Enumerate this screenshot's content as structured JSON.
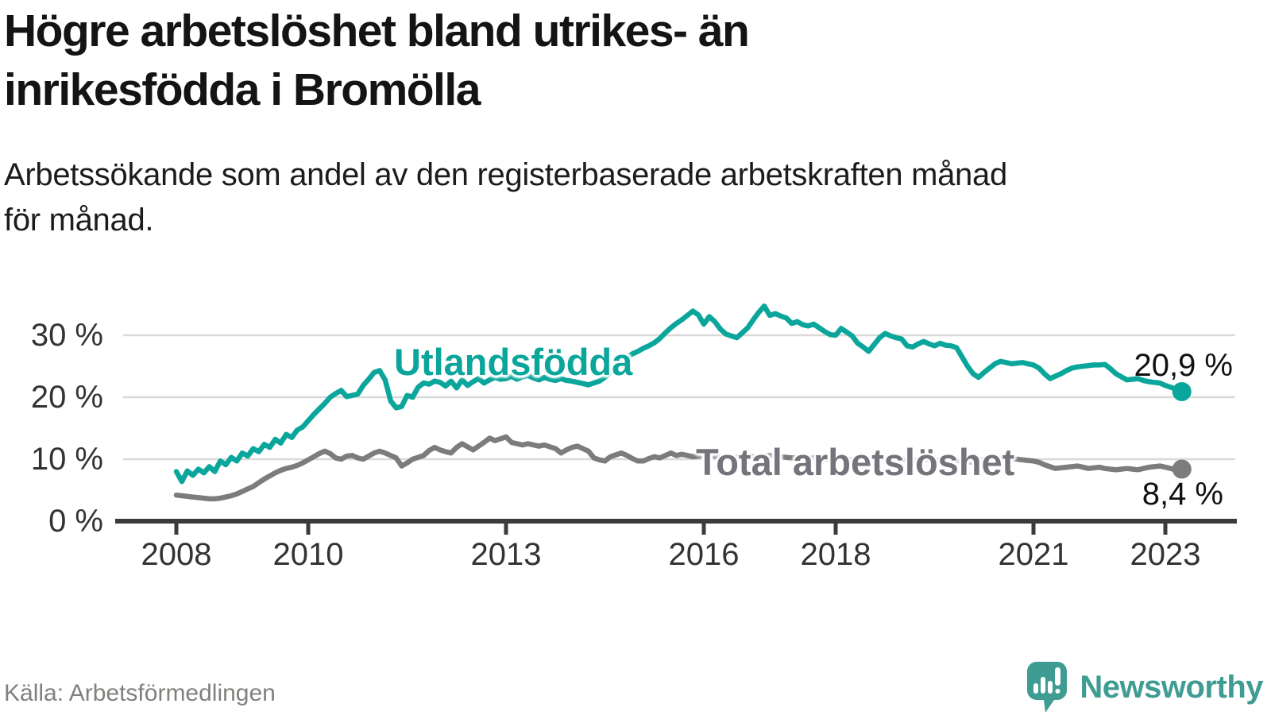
{
  "header": {
    "title_lines": [
      "Högre arbetslöshet bland utrikes- än",
      "inrikesfödda i Bromölla"
    ],
    "subtitle_lines": [
      "Arbetssökande som andel av den registerbaserade arbetskraften månad",
      "för månad."
    ]
  },
  "footer": {
    "source": "Källa: Arbetsförmedlingen",
    "logo_text": "Newsworthy",
    "logo_color": "#3f9c92"
  },
  "chart_data": {
    "type": "line",
    "title": "Högre arbetslöshet bland utrikes- än inrikesfödda i Bromölla",
    "subtitle": "Arbetssökande som andel av den registerbaserade arbetskraften månad för månad.",
    "x_unit": "month",
    "x_start_year": 2008,
    "x_end": "2023-04",
    "xlim": [
      2008.0,
      2023.6
    ],
    "ylim": [
      0,
      36
    ],
    "grid": "horizontal",
    "y_ticks": [
      {
        "value": 0,
        "label": "0 %"
      },
      {
        "value": 10,
        "label": "10 %"
      },
      {
        "value": 20,
        "label": "20 %"
      },
      {
        "value": 30,
        "label": "30 %"
      }
    ],
    "x_ticks": [
      {
        "year": 2008,
        "label": "2008"
      },
      {
        "year": 2010,
        "label": "2010"
      },
      {
        "year": 2013,
        "label": "2013"
      },
      {
        "year": 2016,
        "label": "2016"
      },
      {
        "year": 2018,
        "label": "2018"
      },
      {
        "year": 2021,
        "label": "2021"
      },
      {
        "year": 2023,
        "label": "2023"
      }
    ],
    "series": [
      {
        "name": "Utlandsfödda",
        "color": "#0ba69b",
        "end_value": 20.9,
        "end_label": "20,9 %",
        "values": [
          8.0,
          6.4,
          8.1,
          7.4,
          8.4,
          7.8,
          8.8,
          8.0,
          9.7,
          9.1,
          10.3,
          9.7,
          11.0,
          10.5,
          11.7,
          11.2,
          12.4,
          11.9,
          13.2,
          12.6,
          14.0,
          13.5,
          14.7,
          15.2,
          16.2,
          17.2,
          18.1,
          19.0,
          20.0,
          20.6,
          21.1,
          20.1,
          20.3,
          20.5,
          21.9,
          22.9,
          24.0,
          24.3,
          22.8,
          19.4,
          18.3,
          18.5,
          20.3,
          20.0,
          21.6,
          22.3,
          22.1,
          22.6,
          22.4,
          21.8,
          22.6,
          21.5,
          22.8,
          21.9,
          22.5,
          23.0,
          22.3,
          22.8,
          23.2,
          22.9,
          23.0,
          23.4,
          22.9,
          23.3,
          23.5,
          23.1,
          22.8,
          23.2,
          22.9,
          22.7,
          23.0,
          22.7,
          22.6,
          22.4,
          22.2,
          22.0,
          22.3,
          22.6,
          23.2,
          24.0,
          24.8,
          25.6,
          26.4,
          27.0,
          27.4,
          27.9,
          28.3,
          28.8,
          29.5,
          30.4,
          31.2,
          31.9,
          32.5,
          33.2,
          33.9,
          33.3,
          31.8,
          33.0,
          32.2,
          31.0,
          30.2,
          29.9,
          29.6,
          30.4,
          31.2,
          32.5,
          33.7,
          34.7,
          33.2,
          33.5,
          33.1,
          32.8,
          31.9,
          32.2,
          31.7,
          31.5,
          31.8,
          31.2,
          30.6,
          30.1,
          30.0,
          31.1,
          30.5,
          29.9,
          28.7,
          28.1,
          27.4,
          28.5,
          29.6,
          30.3,
          29.9,
          29.6,
          29.4,
          28.3,
          28.1,
          28.6,
          29.0,
          28.6,
          28.3,
          28.7,
          28.4,
          28.3,
          28.0,
          26.5,
          25.0,
          23.8,
          23.2,
          24.0,
          24.7,
          25.4,
          25.8,
          25.6,
          25.4,
          25.5,
          25.6,
          25.4,
          25.2,
          24.7,
          23.8,
          23.0,
          23.4,
          23.8,
          24.3,
          24.7,
          24.9,
          25.0,
          25.1,
          25.2,
          25.2,
          25.3,
          24.6,
          23.8,
          23.3,
          22.8,
          22.9,
          23.0,
          22.7,
          22.5,
          22.4,
          22.3,
          21.9,
          21.6,
          21.3,
          20.9
        ]
      },
      {
        "name": "Total arbetslöshet",
        "color": "#7c7c7c",
        "end_value": 8.4,
        "end_label": "8,4 %",
        "values": [
          4.2,
          4.1,
          4.0,
          3.9,
          3.8,
          3.7,
          3.6,
          3.6,
          3.7,
          3.9,
          4.1,
          4.4,
          4.8,
          5.2,
          5.6,
          6.2,
          6.8,
          7.3,
          7.8,
          8.2,
          8.5,
          8.7,
          9.0,
          9.4,
          9.9,
          10.4,
          10.9,
          11.3,
          10.9,
          10.2,
          10.0,
          10.5,
          10.6,
          10.2,
          10.0,
          10.5,
          11.0,
          11.3,
          11.0,
          10.6,
          10.2,
          8.9,
          9.4,
          10.0,
          10.3,
          10.6,
          11.4,
          11.9,
          11.5,
          11.2,
          11.0,
          11.9,
          12.5,
          12.0,
          11.5,
          12.1,
          12.7,
          13.4,
          13.0,
          13.3,
          13.6,
          12.7,
          12.5,
          12.3,
          12.5,
          12.3,
          12.1,
          12.3,
          12.0,
          11.7,
          11.0,
          11.5,
          11.9,
          12.1,
          11.7,
          11.3,
          10.2,
          9.9,
          9.7,
          10.4,
          10.7,
          11.0,
          10.6,
          10.1,
          9.7,
          9.7,
          10.1,
          10.4,
          10.2,
          10.6,
          11.0,
          10.6,
          10.8,
          10.6,
          10.4,
          10.5,
          10.6,
          10.7,
          10.5,
          10.4,
          10.3,
          10.2,
          10.3,
          10.4,
          10.5,
          10.4,
          10.3,
          10.5,
          10.6,
          10.5,
          10.4,
          10.3,
          10.2,
          10.3,
          10.2,
          10.1,
          10.2,
          10.1,
          10.0,
          10.0,
          10.1,
          10.2,
          10.0,
          9.9,
          9.8,
          9.7,
          9.8,
          9.9,
          10.0,
          10.1,
          10.0,
          9.9,
          10.0,
          9.9,
          9.8,
          9.9,
          10.0,
          9.9,
          9.8,
          9.9,
          9.8,
          9.9,
          9.8,
          9.7,
          9.6,
          9.5,
          9.7,
          10.0,
          10.2,
          10.3,
          10.1,
          10.2,
          10.1,
          10.0,
          9.9,
          9.8,
          9.7,
          9.5,
          9.1,
          8.8,
          8.5,
          8.6,
          8.7,
          8.8,
          8.9,
          8.7,
          8.5,
          8.6,
          8.7,
          8.5,
          8.4,
          8.3,
          8.4,
          8.5,
          8.4,
          8.3,
          8.5,
          8.7,
          8.8,
          8.9,
          8.7,
          8.5,
          8.2,
          8.4
        ]
      }
    ],
    "colors": {
      "grid": "#d9d9d9",
      "axis": "#3b3b3b",
      "tick_text": "#333333",
      "value_text": "#111111"
    },
    "legend_position": "inline-labels"
  }
}
